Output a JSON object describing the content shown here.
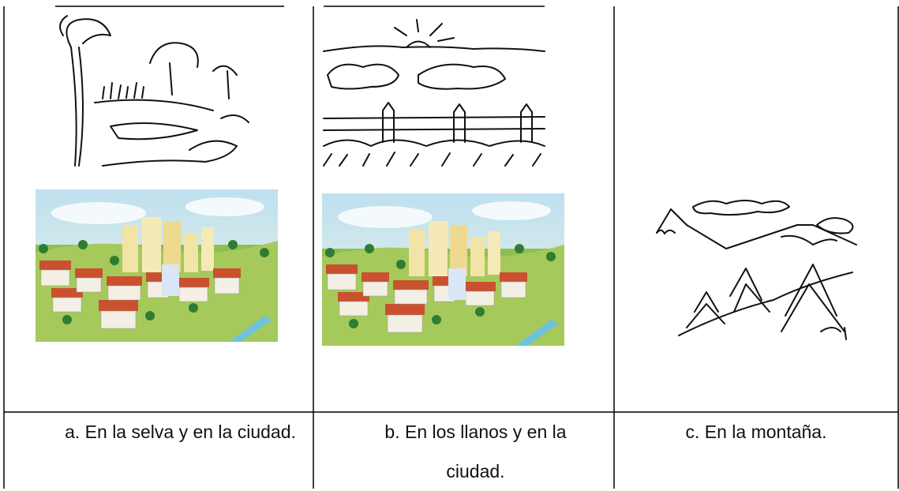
{
  "table": {
    "rows": [
      [
        "a. En la selva y en la ciudad.",
        "b. En los llanos  y en la ciudad.",
        "c. En la montaña."
      ]
    ]
  }
}
